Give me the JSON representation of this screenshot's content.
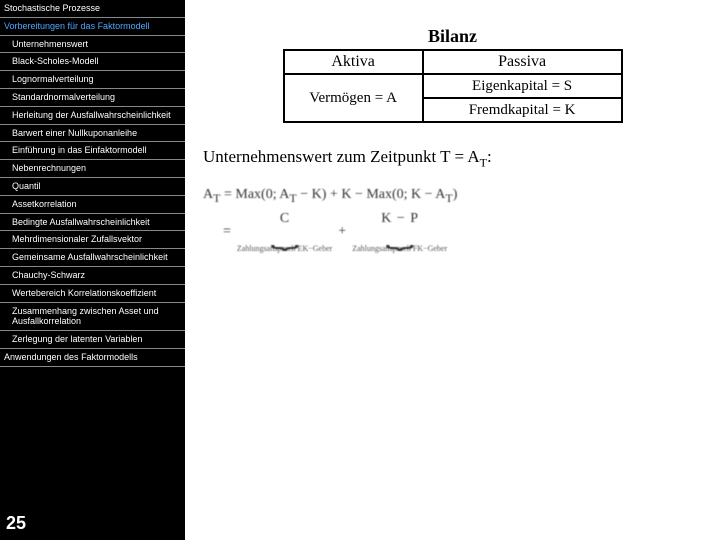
{
  "sidebar": {
    "items": [
      {
        "label": "Stochastische Prozesse",
        "cls": ""
      },
      {
        "label": "Vorbereitungen für das Faktormodell",
        "cls": "blue"
      },
      {
        "label": "Unternehmenswert",
        "cls": "indent1"
      },
      {
        "label": "Black-Scholes-Modell",
        "cls": "indent1"
      },
      {
        "label": "Lognormalverteilung",
        "cls": "indent1"
      },
      {
        "label": "Standardnormalverteilung",
        "cls": "indent1"
      },
      {
        "label": "Herleitung der Ausfallwahrscheinlichkeit",
        "cls": "indent1"
      },
      {
        "label": "Barwert einer Nullkuponanleihe",
        "cls": "indent1"
      },
      {
        "label": "Einführung in das Einfaktormodell",
        "cls": "indent1"
      },
      {
        "label": "Nebenrechnungen",
        "cls": "indent1"
      },
      {
        "label": "Quantil",
        "cls": "indent1"
      },
      {
        "label": "Assetkorrelation",
        "cls": "indent1"
      },
      {
        "label": "Bedingte Ausfallwahrscheinlichkeit",
        "cls": "indent1"
      },
      {
        "label": "Mehrdimensionaler Zufallsvektor",
        "cls": "indent1"
      },
      {
        "label": "Gemeinsame Ausfallwahrscheinlichkeit",
        "cls": "indent1"
      },
      {
        "label": "Chauchy-Schwarz",
        "cls": "indent1"
      },
      {
        "label": "Wertebereich Korrelationskoeffizient",
        "cls": "indent1"
      },
      {
        "label": "Zusammenhang zwischen Asset und Ausfallkorrelation",
        "cls": "indent1"
      },
      {
        "label": "Zerlegung der latenten Variablen",
        "cls": "indent1"
      },
      {
        "label": "Anwendungen des Faktormodells",
        "cls": ""
      }
    ],
    "page_number": "25"
  },
  "balance": {
    "title": "Bilanz",
    "header_aktiva": "Aktiva",
    "header_passiva": "Passiva",
    "vermoegen": "Vermögen = A",
    "eigenkapital": "Eigenkapital = S",
    "fremdkapital": "Fremdkapital = K"
  },
  "description": {
    "text_prefix": "Unternehmenswert zum Zeitpunkt T = A",
    "text_sub": "T",
    "text_suffix": ":"
  },
  "formula": {
    "line1_a": "A",
    "line1_b": " = Max(0; A",
    "line1_c": " − K) + K − Max(0; K − A",
    "line1_d": ")",
    "sub_t": "T",
    "eq": "=",
    "plus": "+",
    "minus": "−",
    "term_call": "C",
    "term_k": "K",
    "term_put": "P",
    "lbl_ek": "Zahlungsanspruch EK−Geber",
    "lbl_fk": "Zahlungsanspruch FK−Geber"
  },
  "style": {
    "bg_sidebar": "#000000",
    "bg_content": "#ffffff",
    "text_nav": "#ffffff",
    "text_nav_active": "#4da6ff",
    "border_table": "#000000",
    "font_serif": "Times New Roman",
    "font_sans": "Arial"
  }
}
